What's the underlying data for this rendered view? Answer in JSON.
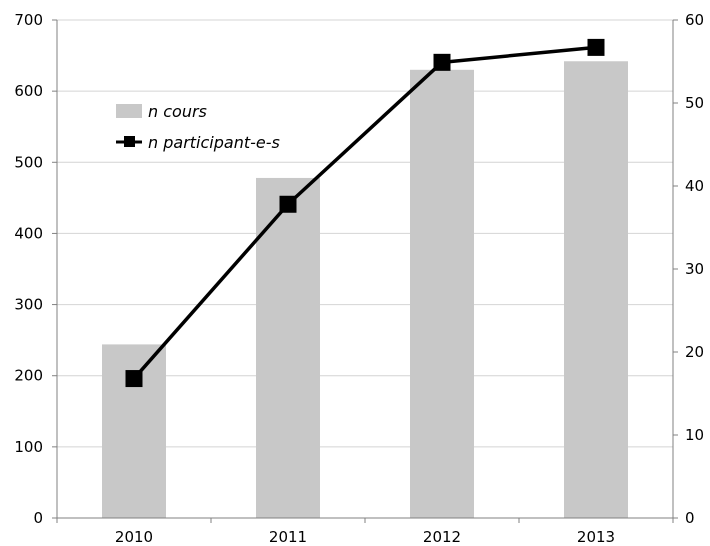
{
  "chart_data": {
    "type": "bar",
    "categories": [
      "2010",
      "2011",
      "2012",
      "2013"
    ],
    "series": [
      {
        "name": "n cours",
        "type": "bar",
        "axis": "left",
        "values": [
          244,
          478,
          630,
          642
        ],
        "color": "#c8c8c8"
      },
      {
        "name": "n participant-e-s",
        "type": "line",
        "axis": "right",
        "values": [
          16.8,
          37.8,
          54.9,
          56.7
        ],
        "color": "#000000"
      }
    ],
    "y_left": {
      "min": 0,
      "max": 700,
      "ticks": [
        "0",
        "100",
        "200",
        "300",
        "400",
        "500",
        "600",
        "700"
      ]
    },
    "y_right": {
      "min": 0,
      "max": 60,
      "ticks": [
        "0",
        "10",
        "20",
        "30",
        "40",
        "50",
        "60"
      ]
    },
    "grid": true,
    "legend_position": "top-left"
  }
}
